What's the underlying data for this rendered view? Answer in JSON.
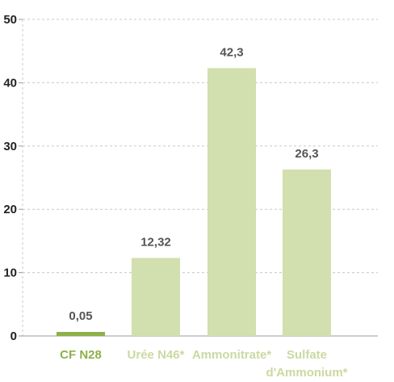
{
  "chart_data": {
    "type": "bar",
    "categories": [
      [
        "CF N28"
      ],
      [
        "Urée N46*"
      ],
      [
        "Ammonitrate*"
      ],
      [
        "Sulfate",
        "d'Ammonium*"
      ]
    ],
    "values": [
      0.05,
      12.32,
      42.3,
      26.3
    ],
    "data_labels": [
      "0,05",
      "12,32",
      "42,3",
      "26,3"
    ],
    "ylim": [
      0,
      50
    ],
    "yticks": [
      0,
      10,
      20,
      30,
      40,
      50
    ],
    "ytick_labels": [
      "0",
      "10",
      "20",
      "30",
      "40",
      "50"
    ],
    "grid": "horizontal dashed",
    "title": "",
    "xlabel": "",
    "ylabel": "",
    "colors": {
      "highlight_bar": "#8db04a",
      "highlight_label": "#8db04a",
      "bar": "#d2dfae",
      "category_label": "#cbd9a1",
      "grid": "#c8c8c8",
      "axis": "#999999"
    },
    "highlight_index": 0
  }
}
